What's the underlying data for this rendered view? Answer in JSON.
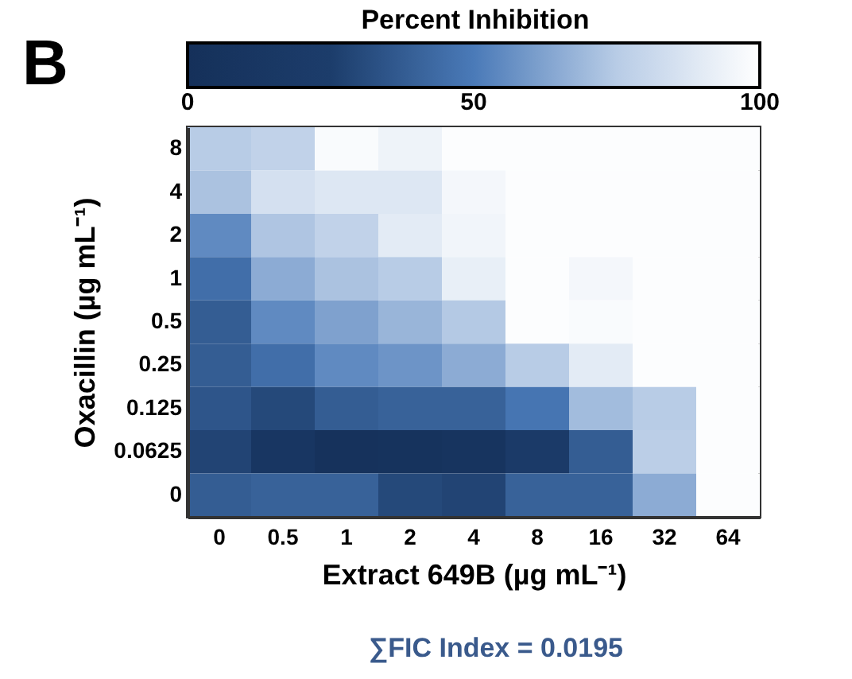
{
  "chart_data": {
    "type": "heatmap",
    "xlabel": "Extract 649B (µg mL⁻¹)",
    "ylabel": "Oxacillin (µg mL⁻¹)",
    "legend_title": "Percent Inhibition",
    "categories": [
      "0",
      "0.5",
      "1",
      "2",
      "4",
      "8",
      "16",
      "32",
      "64"
    ],
    "y_categories": [
      "8",
      "4",
      "2",
      "1",
      "0.5",
      "0.25",
      "0.125",
      "0.0625",
      "0"
    ],
    "cells": [
      [
        75,
        78,
        98,
        94,
        99,
        99,
        99,
        99,
        99
      ],
      [
        72,
        85,
        88,
        88,
        96,
        99,
        99,
        99,
        99
      ],
      [
        55,
        73,
        78,
        90,
        95,
        99,
        99,
        99,
        99
      ],
      [
        45,
        65,
        72,
        75,
        92,
        99,
        96,
        99,
        99
      ],
      [
        38,
        55,
        62,
        68,
        74,
        99,
        98,
        99,
        99
      ],
      [
        38,
        45,
        55,
        58,
        65,
        75,
        90,
        99,
        99
      ],
      [
        35,
        30,
        38,
        40,
        40,
        48,
        70,
        75,
        99
      ],
      [
        28,
        12,
        3,
        5,
        8,
        20,
        38,
        76,
        99
      ],
      [
        38,
        40,
        40,
        30,
        28,
        40,
        40,
        65,
        99
      ]
    ],
    "clim": [
      0,
      100
    ],
    "cticks": [
      0,
      50,
      100
    ],
    "annotations": [
      "B",
      "∑FIC Index = 0.0195"
    ]
  }
}
